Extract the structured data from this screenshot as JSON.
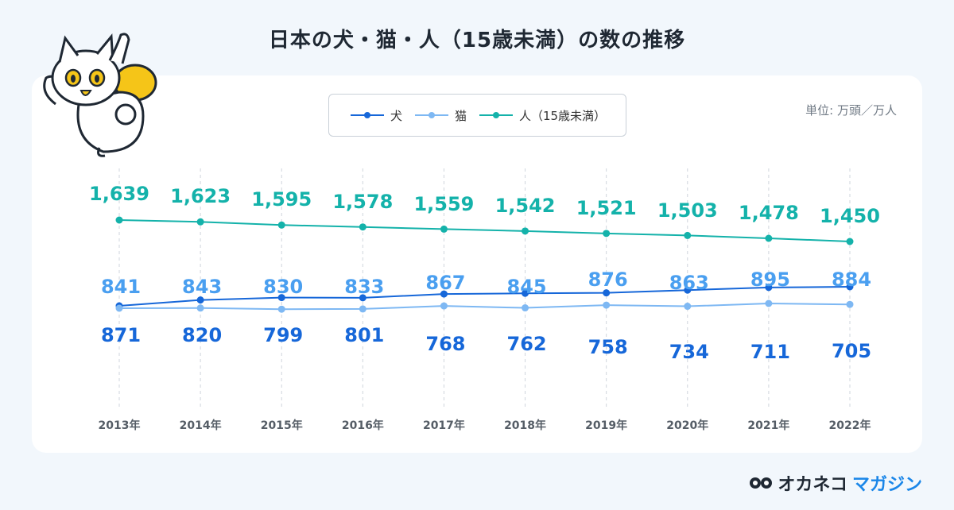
{
  "title": "日本の犬・猫・人（15歳未満）の数の推移",
  "unit_label": "単位: 万頭／万人",
  "brand": {
    "name_part1": "オカネコ",
    "name_part2": "マガジン"
  },
  "colors": {
    "dog": "#1667d9",
    "cat": "#7eb8f3",
    "human": "#14b2aa",
    "cat_label": "#4a9ff0"
  },
  "chart_data": {
    "type": "line",
    "title": "日本の犬・猫・人（15歳未満）の数の推移",
    "categories": [
      "2013年",
      "2014年",
      "2015年",
      "2016年",
      "2017年",
      "2018年",
      "2019年",
      "2020年",
      "2021年",
      "2022年"
    ],
    "series": [
      {
        "name": "犬",
        "values": [
          871,
          820,
          799,
          801,
          768,
          762,
          758,
          734,
          711,
          705
        ],
        "labels": [
          "871",
          "820",
          "799",
          "801",
          "768",
          "762",
          "758",
          "734",
          "711",
          "705"
        ]
      },
      {
        "name": "猫",
        "values": [
          841,
          843,
          830,
          833,
          867,
          845,
          876,
          863,
          895,
          884
        ],
        "labels": [
          "841",
          "843",
          "830",
          "833",
          "867",
          "845",
          "876",
          "863",
          "895",
          "884"
        ]
      },
      {
        "name": "人（15歳未満）",
        "values": [
          1639,
          1623,
          1595,
          1578,
          1559,
          1542,
          1521,
          1503,
          1478,
          1450
        ],
        "labels": [
          "1,639",
          "1,623",
          "1,595",
          "1,578",
          "1,559",
          "1,542",
          "1,521",
          "1,503",
          "1,478",
          "1,450"
        ]
      }
    ],
    "grid": "vertical-dashed",
    "legend_position": "top-center"
  }
}
